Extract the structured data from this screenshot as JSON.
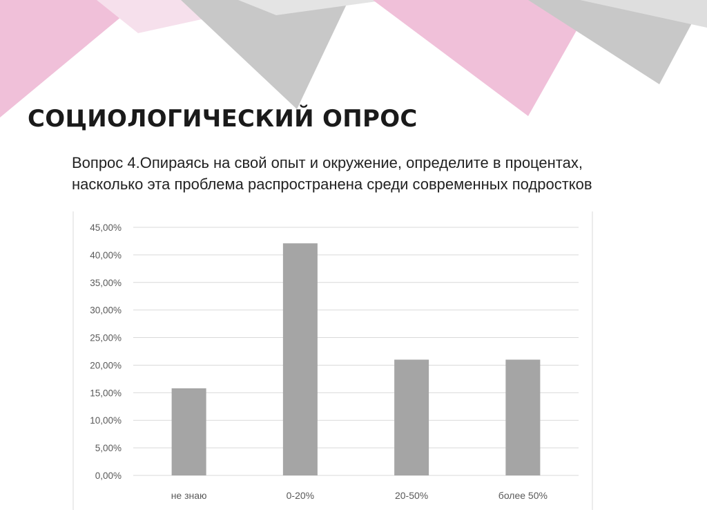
{
  "slide": {
    "title": "СОЦИОЛОГИЧЕСКИЙ ОПРОС",
    "question": "Вопрос 4.Опираясь на свой опыт и окружение, определите в процентах, насколько эта проблема распространена среди современных подростков"
  },
  "colors": {
    "pink": "#f0c0d9",
    "gray_triangle": "#c8c8c8",
    "bar": "#a5a5a5",
    "grid": "#d9d9d9",
    "axis_text": "#595959"
  },
  "chart_data": {
    "type": "bar",
    "categories": [
      "не знаю",
      "0-20%",
      "20-50%",
      "более 50%"
    ],
    "values": [
      15.8,
      42.1,
      21.0,
      21.0
    ],
    "ylim": [
      0,
      45
    ],
    "yticks": [
      "0,00%",
      "5,00%",
      "10,00%",
      "15,00%",
      "20,00%",
      "25,00%",
      "30,00%",
      "35,00%",
      "40,00%",
      "45,00%"
    ],
    "grid": true,
    "legend": "none"
  }
}
